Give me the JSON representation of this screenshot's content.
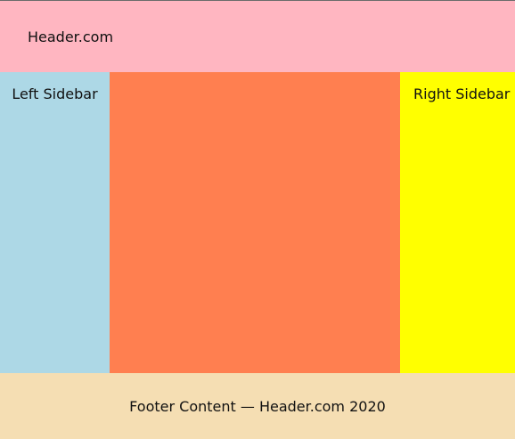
{
  "header": {
    "title": "Header.com",
    "background": "#ffb6c1"
  },
  "sidebar_left": {
    "label": "Left Sidebar",
    "background": "#add8e6"
  },
  "main": {
    "background": "#ff7f50"
  },
  "sidebar_right": {
    "label": "Right Sidebar",
    "background": "#ffff00"
  },
  "footer": {
    "text": "Footer Content — Header.com 2020",
    "background": "#f5deb3"
  }
}
